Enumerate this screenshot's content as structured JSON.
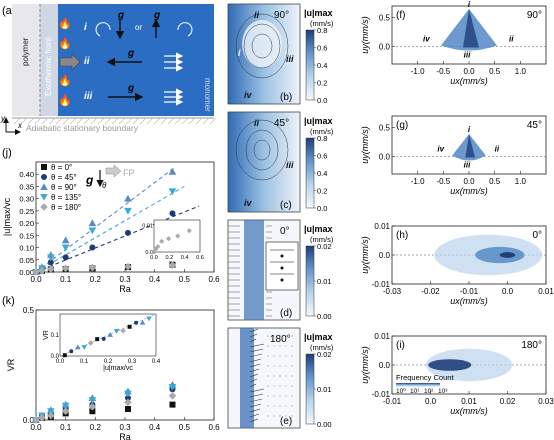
{
  "figure": {
    "panel_a": {
      "label": "(a)",
      "left_label": "polymer",
      "right_label": "monomer",
      "front_label": "Exothermic front",
      "boundary_label": "Adiabatic stationary boundary",
      "roman": [
        "i",
        "ii",
        "iii"
      ],
      "gravity_symbol": "g",
      "or_text": "or",
      "axis_y": "y",
      "axis_x": "x"
    },
    "panel_b": {
      "label": "(b)",
      "angle": "90°",
      "roman": [
        "i",
        "ii",
        "iii",
        "iv"
      ]
    },
    "panel_c": {
      "label": "(c)",
      "angle": "45°",
      "roman": [
        "ii",
        "iii",
        "iv"
      ]
    },
    "panel_d": {
      "label": "(d)",
      "angle": "0°"
    },
    "panel_e": {
      "label": "(e)",
      "angle": "180°"
    },
    "colorbar_b": {
      "title": "|u|max",
      "unit": "(mm/s)",
      "ticks": [
        "0.8",
        "0.6",
        "0.4",
        "0.2",
        "0.0"
      ],
      "max": 0.8,
      "ticks_num": [
        0.8,
        0.6,
        0.4,
        0.2,
        0.0
      ]
    },
    "colorbar_c": {
      "title": "|u|max",
      "unit": "(mm/s)",
      "ticks": [
        "0.8",
        "0.6",
        "0.4",
        "0.2",
        "0.0"
      ],
      "max": 0.8,
      "ticks_num": [
        0.8,
        0.6,
        0.4,
        0.2,
        0.0
      ]
    },
    "colorbar_d": {
      "title": "|u|max",
      "unit": "(mm/s)",
      "ticks": [
        "0.02",
        "0.01",
        "0.00"
      ],
      "max": 0.02,
      "ticks_num": [
        0.02,
        0.01,
        0.0
      ]
    },
    "colorbar_e": {
      "title": "|u|max",
      "unit": "(mm/s)",
      "ticks": [
        "0.02",
        "0.01",
        "0.00"
      ],
      "max": 0.02,
      "ticks_num": [
        0.02,
        0.01,
        0.0
      ]
    },
    "panel_f": {
      "label": "(f)",
      "angle": "90°",
      "roman": [
        "i",
        "ii",
        "iii",
        "iv"
      ],
      "xlabel": "ux(mm/s)",
      "ylabel": "uy(mm/s)"
    },
    "panel_g": {
      "label": "(g)",
      "angle": "45°",
      "roman": [
        "i",
        "ii",
        "iii",
        "iv"
      ],
      "xlabel": "ux(mm/s)",
      "ylabel": "uy(mm/s)"
    },
    "panel_h": {
      "label": "(h)",
      "angle": "0°",
      "xlabel": "ux(mm/s)",
      "ylabel": "uy(mm/s)"
    },
    "panel_i": {
      "label": "(i)",
      "angle": "180°",
      "xlabel": "ux(mm/s)",
      "ylabel": "uy(mm/s)",
      "freq_label": "Frequency Count",
      "freq_ticks": [
        "10⁰",
        "10¹",
        "10²",
        "10³"
      ]
    },
    "panel_j": {
      "label": "(j)",
      "fp_label": "FP",
      "gravity_symbol": "g",
      "theta_symbol": "θ"
    },
    "panel_k": {
      "label": "(k)"
    }
  },
  "chart_data": [
    {
      "type": "scatter",
      "panel": "f",
      "xlabel": "ux(mm/s)",
      "ylabel": "uy(mm/s)",
      "xlim": [
        -1.5,
        1.5
      ],
      "ylim": [
        -0.3,
        0.7
      ],
      "xticks": [
        -1.0,
        -0.5,
        0.0,
        0.5,
        1.0
      ],
      "yticks": [
        0.0,
        0.5
      ]
    },
    {
      "type": "scatter",
      "panel": "g",
      "xlabel": "ux(mm/s)",
      "ylabel": "uy(mm/s)",
      "xlim": [
        -1.5,
        1.5
      ],
      "ylim": [
        -0.3,
        0.7
      ],
      "xticks": [
        -1.0,
        -0.5,
        0.0,
        0.5,
        1.0
      ],
      "yticks": [
        0.0,
        0.5
      ]
    },
    {
      "type": "scatter",
      "panel": "h",
      "xlabel": "ux(mm/s)",
      "ylabel": "uy(mm/s)",
      "xlim": [
        -0.03,
        0.01
      ],
      "ylim": [
        -0.01,
        0.01
      ],
      "xticks": [
        -0.03,
        -0.02,
        -0.01,
        0.0,
        0.01
      ],
      "yticks": [
        -0.01,
        0.0,
        0.01
      ]
    },
    {
      "type": "scatter",
      "panel": "i",
      "xlabel": "ux(mm/s)",
      "ylabel": "uy(mm/s)",
      "xlim": [
        -0.01,
        0.03
      ],
      "ylim": [
        -0.01,
        0.01
      ],
      "xticks": [
        -0.01,
        0.0,
        0.01,
        0.02,
        0.03
      ],
      "yticks": [
        -0.01,
        0.0,
        0.01
      ]
    },
    {
      "type": "scatter",
      "panel": "j",
      "xlabel": "Ra",
      "ylabel": "|u|max/vc",
      "xlim": [
        0,
        0.6
      ],
      "ylim": [
        0,
        0.45
      ],
      "xticks": [
        0.0,
        0.1,
        0.2,
        0.3,
        0.4,
        0.5,
        0.6
      ],
      "yticks": [
        0.0,
        0.05,
        0.1,
        0.15,
        0.2,
        0.25,
        0.3,
        0.35,
        0.4
      ],
      "series": [
        {
          "name": "θ = 0°",
          "marker": "square",
          "color": "#111111",
          "x": [
            0.0,
            0.02,
            0.05,
            0.1,
            0.19,
            0.31,
            0.46
          ],
          "y": [
            0.0,
            0.005,
            0.01,
            0.012,
            0.015,
            0.02,
            0.03
          ]
        },
        {
          "name": "θ = 45°",
          "marker": "circle",
          "color": "#1f3a7a",
          "x": [
            0.0,
            0.02,
            0.05,
            0.1,
            0.19,
            0.31,
            0.46
          ],
          "y": [
            0.0,
            0.01,
            0.04,
            0.06,
            0.1,
            0.16,
            0.24
          ]
        },
        {
          "name": "θ = 90°",
          "marker": "triangle-up",
          "color": "#5a89c8",
          "x": [
            0.0,
            0.02,
            0.05,
            0.1,
            0.19,
            0.31,
            0.46
          ],
          "y": [
            0.0,
            0.02,
            0.07,
            0.13,
            0.2,
            0.3,
            0.41
          ]
        },
        {
          "name": "θ = 135°",
          "marker": "triangle-down",
          "color": "#39a9d6",
          "x": [
            0.0,
            0.02,
            0.05,
            0.1,
            0.19,
            0.31,
            0.46
          ],
          "y": [
            0.0,
            0.015,
            0.06,
            0.1,
            0.17,
            0.25,
            0.33
          ]
        },
        {
          "name": "θ = 180°",
          "marker": "diamond",
          "color": "#aaaaaa",
          "x": [
            0.0,
            0.02,
            0.05,
            0.1,
            0.19,
            0.31,
            0.46
          ],
          "y": [
            0.0,
            0.005,
            0.012,
            0.015,
            0.018,
            0.022,
            0.028
          ]
        }
      ],
      "fit_lines": [
        {
          "color": "#1f3a7a",
          "x": [
            0.0,
            0.55
          ],
          "y": [
            0.0,
            0.27
          ]
        },
        {
          "color": "#39a9d6",
          "x": [
            0.0,
            0.5
          ],
          "y": [
            0.0,
            0.35
          ]
        },
        {
          "color": "#5a89c8",
          "x": [
            0.0,
            0.47
          ],
          "y": [
            0.0,
            0.43
          ]
        }
      ],
      "inset": {
        "xlim": [
          0,
          0.6
        ],
        "ylim": [
          0,
          0.012
        ],
        "xticks": [
          0.0,
          0.2,
          0.4,
          0.6
        ],
        "yticks": [
          0.0,
          0.01
        ],
        "x": [
          0.0,
          0.02,
          0.05,
          0.1,
          0.19,
          0.31,
          0.46
        ],
        "y": [
          0.0,
          0.001,
          0.002,
          0.004,
          0.005,
          0.006,
          0.008
        ]
      }
    },
    {
      "type": "scatter",
      "panel": "k",
      "xlabel": "Ra",
      "ylabel": "VR",
      "xlim": [
        0,
        0.6
      ],
      "ylim": [
        0,
        0.5
      ],
      "xticks": [
        0.0,
        0.1,
        0.2,
        0.3,
        0.4,
        0.5,
        0.6
      ],
      "yticks": [
        0.0,
        0.5
      ],
      "series": [
        {
          "name": "θ = 0°",
          "marker": "square",
          "color": "#111111",
          "x": [
            0.0,
            0.02,
            0.05,
            0.1,
            0.19,
            0.31,
            0.46
          ],
          "y": [
            0.0,
            0.01,
            0.015,
            0.03,
            0.04,
            0.05,
            0.07
          ]
        },
        {
          "name": "θ = 45°",
          "marker": "circle",
          "color": "#1f3a7a",
          "x": [
            0.0,
            0.02,
            0.05,
            0.1,
            0.19,
            0.31,
            0.46
          ],
          "y": [
            0.0,
            0.015,
            0.03,
            0.05,
            0.07,
            0.1,
            0.14
          ]
        },
        {
          "name": "θ = 90°",
          "marker": "triangle-up",
          "color": "#5a89c8",
          "x": [
            0.0,
            0.02,
            0.05,
            0.1,
            0.19,
            0.31,
            0.46
          ],
          "y": [
            0.0,
            0.02,
            0.045,
            0.07,
            0.1,
            0.13,
            0.16
          ]
        },
        {
          "name": "θ = 135°",
          "marker": "triangle-down",
          "color": "#39a9d6",
          "x": [
            0.0,
            0.02,
            0.05,
            0.1,
            0.19,
            0.31,
            0.46
          ],
          "y": [
            0.0,
            0.02,
            0.04,
            0.065,
            0.09,
            0.12,
            0.15
          ]
        },
        {
          "name": "θ = 180°",
          "marker": "diamond",
          "color": "#aaaaaa",
          "x": [
            0.0,
            0.02,
            0.05,
            0.1,
            0.19,
            0.31,
            0.46
          ],
          "y": [
            0.0,
            0.01,
            0.02,
            0.04,
            0.06,
            0.08,
            0.11
          ]
        }
      ],
      "inset": {
        "xlabel": "|u|max/vc",
        "ylabel": "VR",
        "xlim": [
          0,
          0.4
        ],
        "ylim": [
          0,
          0.2
        ],
        "xticks": [
          0.0,
          0.1,
          0.2,
          0.3,
          0.4
        ],
        "yticks": [
          0.0,
          0.1
        ]
      }
    }
  ]
}
